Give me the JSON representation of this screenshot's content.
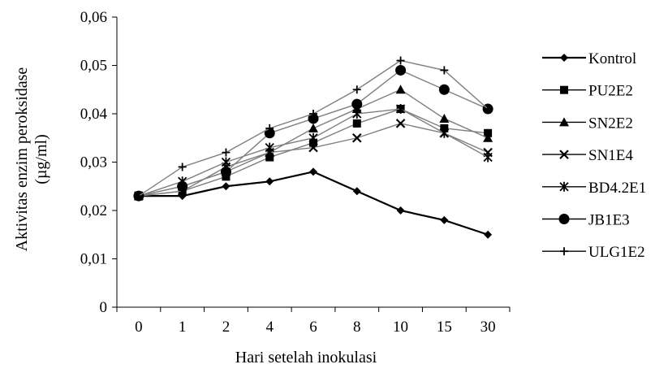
{
  "chart_data": {
    "type": "line",
    "title": "",
    "xlabel": "Hari setelah inokulasi",
    "ylabel_line1": "Aktivitas enzim peroksidase",
    "ylabel_line2": "(µg/ml)",
    "categories": [
      "0",
      "1",
      "2",
      "4",
      "6",
      "8",
      "10",
      "15",
      "30"
    ],
    "ylim": [
      0,
      0.06
    ],
    "yticks": [
      0,
      0.01,
      0.02,
      0.03,
      0.04,
      0.05,
      0.06
    ],
    "ytick_labels": [
      "0",
      "0,01",
      "0,02",
      "0,03",
      "0,04",
      "0,05",
      "0,06"
    ],
    "grid": false,
    "legend_position": "right",
    "series": [
      {
        "name": "Kontrol",
        "marker": "diamond",
        "values": [
          0.023,
          0.023,
          0.025,
          0.026,
          0.028,
          0.024,
          0.02,
          0.018,
          0.015
        ]
      },
      {
        "name": "PU2E2",
        "marker": "square",
        "values": [
          0.023,
          0.024,
          0.027,
          0.031,
          0.034,
          0.038,
          0.041,
          0.037,
          0.036
        ]
      },
      {
        "name": "SN2E2",
        "marker": "triangle",
        "values": [
          0.023,
          0.025,
          0.028,
          0.032,
          0.037,
          0.041,
          0.045,
          0.039,
          0.035
        ]
      },
      {
        "name": "SN1E4",
        "marker": "x",
        "values": [
          0.023,
          0.024,
          0.029,
          0.032,
          0.033,
          0.035,
          0.038,
          0.036,
          0.032
        ]
      },
      {
        "name": "BD4.2E1",
        "marker": "asterisk",
        "values": [
          0.023,
          0.026,
          0.03,
          0.033,
          0.035,
          0.04,
          0.041,
          0.036,
          0.031
        ]
      },
      {
        "name": "JB1E3",
        "marker": "circle",
        "values": [
          0.023,
          0.025,
          0.028,
          0.036,
          0.039,
          0.042,
          0.049,
          0.045,
          0.041
        ]
      },
      {
        "name": "ULG1E2",
        "marker": "plus",
        "values": [
          0.023,
          0.029,
          0.032,
          0.037,
          0.04,
          0.045,
          0.051,
          0.049,
          0.041
        ]
      }
    ],
    "colors": {
      "kontrol_line": "#000000",
      "treatment_line": "#7f7f7f",
      "marker": "#000000",
      "axis": "#000000"
    }
  }
}
